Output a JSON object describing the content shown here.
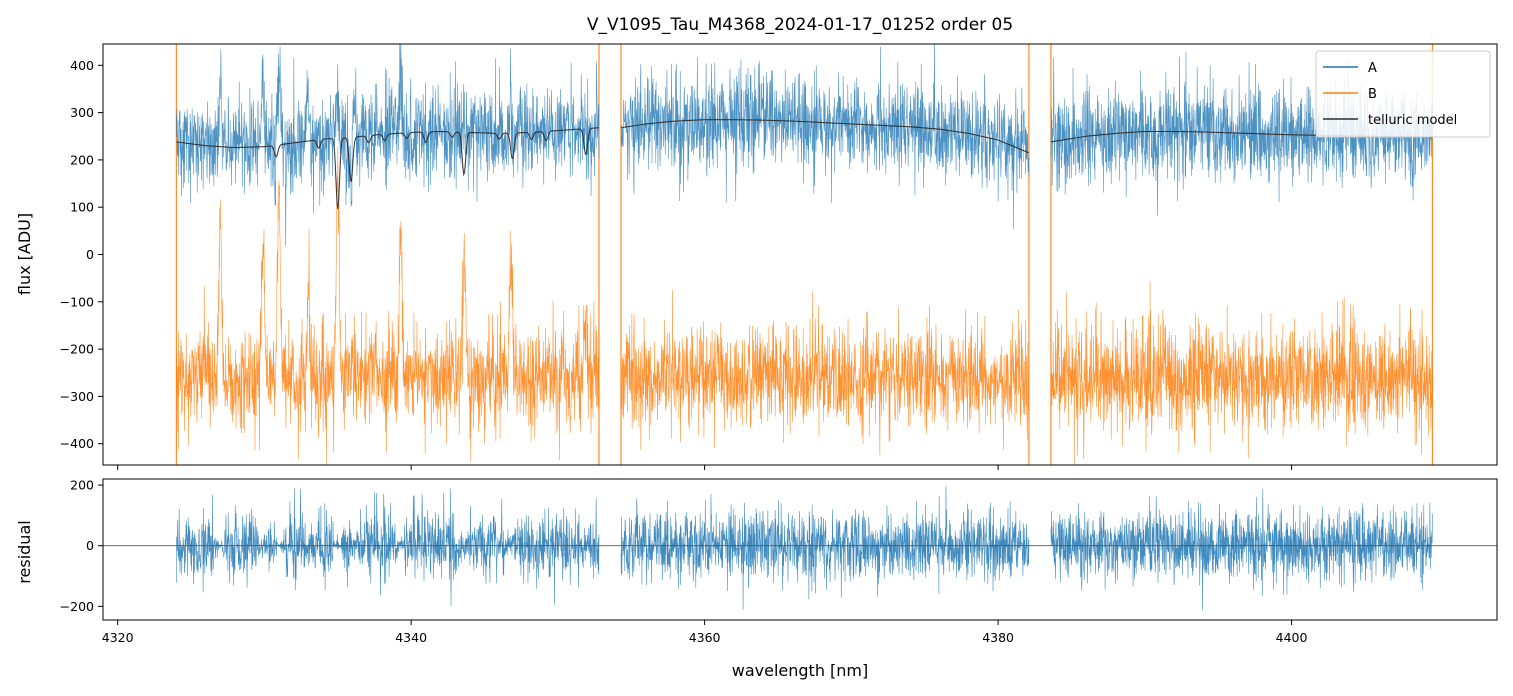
{
  "chart_data": [
    {
      "panel": "top",
      "type": "line",
      "title": "V_V1095_Tau_M4368_2024-01-17_01252  order 05",
      "xlabel": "",
      "ylabel": "flux [ADU]",
      "xlim": [
        4319,
        4414
      ],
      "ylim": [
        -445,
        445
      ],
      "xticks": [
        4320,
        4340,
        4360,
        4380,
        4400
      ],
      "xtick_labels_visible": false,
      "yticks": [
        -400,
        -300,
        -200,
        -100,
        0,
        100,
        200,
        300,
        400
      ],
      "grid": false,
      "legend": {
        "placement": "top-right",
        "entries": [
          "A",
          "B",
          "telluric model"
        ]
      },
      "segments": [
        [
          4324.0,
          4352.8
        ],
        [
          4354.3,
          4382.1
        ],
        [
          4383.6,
          4409.6
        ]
      ],
      "series": [
        {
          "name": "A",
          "color": "#1f77b4",
          "kind": "noisy-spectrum",
          "note_mean": "~ telluric model",
          "noise_sigma": 45,
          "dips": [
            [
              4327.0,
              -140
            ],
            [
              4329.9,
              -120
            ],
            [
              4331.0,
              -150
            ],
            [
              4333.0,
              -90
            ],
            [
              4335.0,
              -200
            ],
            [
              4336.1,
              -90
            ],
            [
              4339.3,
              -120
            ],
            [
              4343.6,
              -110
            ],
            [
              4346.8,
              -100
            ],
            [
              4351.9,
              -60
            ]
          ],
          "range": [
            -445,
            445
          ]
        },
        {
          "name": "B",
          "color": "#ff7f0e",
          "kind": "noisy-spectrum",
          "mean": -260,
          "noise_sigma": 50,
          "spikes": [
            [
              4327.0,
              300
            ],
            [
              4329.9,
              280
            ],
            [
              4331.0,
              380
            ],
            [
              4333.0,
              200
            ],
            [
              4335.0,
              420
            ],
            [
              4339.3,
              330
            ],
            [
              4343.6,
              280
            ],
            [
              4346.8,
              220
            ],
            [
              4351.9,
              160
            ]
          ],
          "range": [
            -445,
            445
          ]
        },
        {
          "name": "telluric model",
          "color": "#2a2a2a",
          "kind": "smooth",
          "x": [
            4324.0,
            4326.0,
            4328.0,
            4330.0,
            4332.0,
            4334.0,
            4336.0,
            4338.0,
            4340.0,
            4342.0,
            4344.0,
            4346.0,
            4348.0,
            4350.0,
            4352.8,
            4354.3,
            4356.0,
            4358.0,
            4360.0,
            4362.0,
            4364.0,
            4366.0,
            4368.0,
            4370.0,
            4372.0,
            4374.0,
            4376.0,
            4378.0,
            4380.0,
            4382.1,
            4383.6,
            4386.0,
            4388.0,
            4390.0,
            4392.0,
            4394.0,
            4396.0,
            4398.0,
            4400.0,
            4402.0,
            4404.0,
            4406.0,
            4408.0,
            4409.6
          ],
          "y": [
            238,
            230,
            226,
            228,
            236,
            244,
            248,
            254,
            258,
            260,
            258,
            256,
            258,
            262,
            268,
            268,
            276,
            282,
            285,
            285,
            284,
            282,
            279,
            276,
            273,
            270,
            265,
            256,
            242,
            215,
            238,
            250,
            256,
            260,
            260,
            259,
            257,
            255,
            253,
            252,
            251,
            250,
            249,
            248
          ],
          "dips": [
            [
              4330.8,
              25
            ],
            [
              4333.7,
              18
            ],
            [
              4335.0,
              150
            ],
            [
              4335.9,
              95
            ],
            [
              4337.1,
              15
            ],
            [
              4338.2,
              14
            ],
            [
              4339.7,
              12
            ],
            [
              4341.0,
              22
            ],
            [
              4342.8,
              12
            ],
            [
              4343.6,
              90
            ],
            [
              4346.0,
              12
            ],
            [
              4346.9,
              55
            ],
            [
              4348.2,
              15
            ],
            [
              4349.2,
              20
            ],
            [
              4351.9,
              55
            ]
          ]
        }
      ]
    },
    {
      "panel": "bottom",
      "type": "line",
      "title": "",
      "xlabel": "wavelength [nm]",
      "ylabel": "residual",
      "xlim": [
        4319,
        4414
      ],
      "ylim": [
        -245,
        220
      ],
      "xticks": [
        4320,
        4340,
        4360,
        4380,
        4400
      ],
      "yticks": [
        -200,
        0,
        200
      ],
      "grid": false,
      "zero_line": 0,
      "series": [
        {
          "color": "#1f77b4",
          "kind": "noisy-residual",
          "mean": 0,
          "noise_sigma": 55,
          "segments": [
            [
              4324.0,
              4352.8
            ],
            [
              4354.3,
              4382.1
            ],
            [
              4383.6,
              4409.6
            ]
          ]
        }
      ]
    }
  ]
}
